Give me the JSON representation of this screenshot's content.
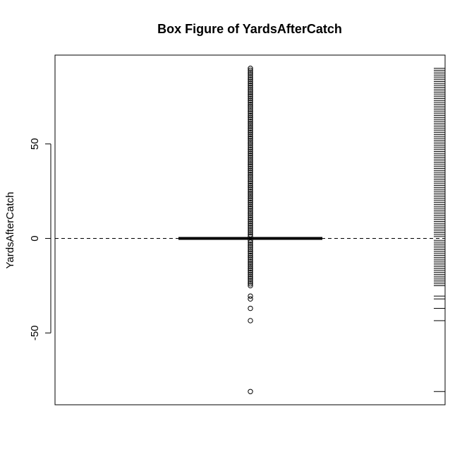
{
  "chart_data": {
    "type": "box",
    "title": "Box Figure of YardsAfterCatch",
    "xlabel": "",
    "ylabel": "YardsAfterCatch",
    "ylim": [
      -88,
      97
    ],
    "yticks": [
      -50,
      0,
      50
    ],
    "ytick_labels": [
      "-50",
      "0",
      "50"
    ],
    "reference_line": {
      "y": 0,
      "style": "dashed"
    },
    "box": {
      "q1": 0,
      "median": 0,
      "q3": 0,
      "whisker_low": 0,
      "whisker_high": 0
    },
    "outliers": [
      -81,
      -43.5,
      -37,
      -32,
      -30.5,
      -25,
      -24,
      -23,
      -22,
      -21,
      -20,
      -19,
      -18,
      -17,
      -16,
      -15,
      -14,
      -13,
      -12,
      -11,
      -10,
      -9,
      -8,
      -7,
      -6,
      -5,
      -4,
      -3,
      -2,
      -1,
      1,
      2,
      3,
      4,
      5,
      6,
      7,
      8,
      9,
      10,
      11,
      12,
      13,
      14,
      15,
      16,
      17,
      18,
      19,
      20,
      21,
      22,
      23,
      24,
      25,
      26,
      27,
      28,
      29,
      30,
      31,
      32,
      33,
      34,
      35,
      36,
      37,
      38,
      39,
      40,
      41,
      42,
      43,
      44,
      45,
      46,
      47,
      48,
      49,
      50,
      51,
      52,
      53,
      54,
      55,
      56,
      57,
      58,
      59,
      60,
      61,
      62,
      63,
      64,
      65,
      66,
      67,
      68,
      69,
      70,
      71,
      72,
      73,
      74,
      75,
      76,
      77,
      78,
      79,
      80,
      81,
      82,
      83,
      84,
      85,
      86,
      87,
      88,
      89,
      90
    ],
    "rug": true,
    "grid": false,
    "legend": "none"
  }
}
